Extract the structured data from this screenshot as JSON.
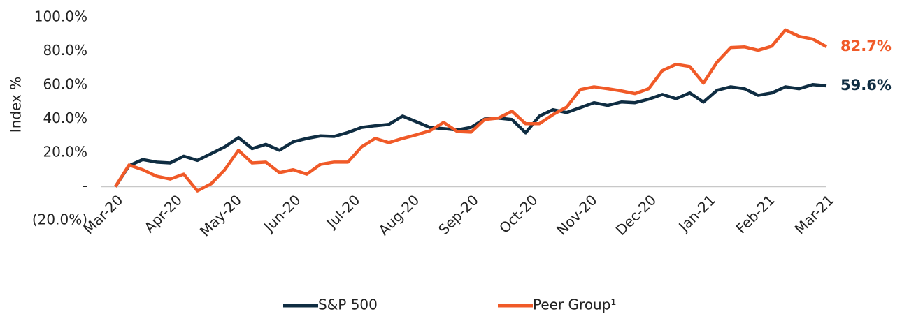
{
  "chart_data": {
    "type": "line",
    "ylabel": "Index %",
    "x": [
      0,
      1,
      2,
      3,
      4,
      5,
      6,
      7,
      8,
      9,
      10,
      11,
      12,
      13,
      14,
      15,
      16,
      17,
      18,
      19,
      20,
      21,
      22,
      23,
      24,
      25,
      26,
      27,
      28,
      29,
      30,
      31,
      32,
      33,
      34,
      35,
      36,
      37,
      38,
      39,
      40,
      41,
      42,
      43,
      44,
      45,
      46,
      47,
      48,
      49,
      50,
      51,
      52
    ],
    "xlim": [
      0,
      52
    ],
    "xticks": [
      {
        "value": 0,
        "label": "Mar-20"
      },
      {
        "value": 4.33,
        "label": "Apr-20"
      },
      {
        "value": 8.67,
        "label": "May-20"
      },
      {
        "value": 13,
        "label": "Jun-20"
      },
      {
        "value": 17.33,
        "label": "Jul-20"
      },
      {
        "value": 21.67,
        "label": "Aug-20"
      },
      {
        "value": 26,
        "label": "Sep-20"
      },
      {
        "value": 30.33,
        "label": "Oct-20"
      },
      {
        "value": 34.67,
        "label": "Nov-20"
      },
      {
        "value": 39,
        "label": "Dec-20"
      },
      {
        "value": 43.33,
        "label": "Jan-21"
      },
      {
        "value": 47.67,
        "label": "Feb-21"
      },
      {
        "value": 52,
        "label": "Mar-21"
      }
    ],
    "ylim": [
      -20,
      100
    ],
    "yticks": [
      {
        "value": -20,
        "label": "(20.0%)"
      },
      {
        "value": 0,
        "label": "-"
      },
      {
        "value": 20,
        "label": "20.0%"
      },
      {
        "value": 40,
        "label": "40.0%"
      },
      {
        "value": 60,
        "label": "60.0%"
      },
      {
        "value": 80,
        "label": "80.0%"
      },
      {
        "value": 100,
        "label": "100.0%"
      }
    ],
    "zero_line": true,
    "series": [
      {
        "name": "S&P 500",
        "color": "#0f2d42",
        "values": [
          0,
          12.4,
          16,
          14.5,
          14,
          18,
          15.5,
          19.5,
          23.5,
          29,
          22.5,
          25,
          21.5,
          26.5,
          28.5,
          30,
          29.7,
          32,
          35,
          36,
          36.8,
          41.7,
          38.4,
          35,
          34.3,
          33.5,
          35,
          40,
          40.5,
          39.7,
          31.8,
          41.7,
          45.5,
          43.8,
          46.7,
          49.6,
          48,
          50,
          49.6,
          51.7,
          54.5,
          52,
          55.4,
          50,
          57,
          59,
          57.9,
          54,
          55.4,
          59,
          57.9,
          60.3,
          59.6
        ],
        "value_labels": [
          null,
          null,
          null,
          null,
          null,
          null,
          null,
          null,
          null,
          null,
          null,
          null,
          null,
          null,
          null,
          null,
          null,
          null,
          null,
          null,
          null,
          null,
          null,
          null,
          null,
          null,
          null,
          null,
          null,
          null,
          null,
          null,
          null,
          null,
          null,
          null,
          null,
          null,
          null,
          null,
          null,
          null,
          null,
          null,
          null,
          null,
          null,
          null,
          null,
          null,
          null,
          null,
          "59.6%"
        ]
      },
      {
        "name": "Peer Group¹",
        "color": "#f05a28",
        "values": [
          0,
          12.8,
          10,
          6.2,
          4.5,
          7.4,
          -2.5,
          1.7,
          10,
          21.5,
          14,
          14.5,
          8.3,
          10,
          7.4,
          13.2,
          14.5,
          14.5,
          23.5,
          28.5,
          26,
          28.5,
          30.6,
          33,
          38,
          32.6,
          32.2,
          39.7,
          40.5,
          44.6,
          37.2,
          37.2,
          42.6,
          47,
          57.4,
          59,
          57.9,
          56.6,
          55,
          57.9,
          68.6,
          72.3,
          71,
          61.2,
          73.6,
          82.2,
          82.6,
          80.6,
          83,
          92.6,
          88.8,
          87.2,
          82.7
        ],
        "value_labels": [
          null,
          null,
          null,
          null,
          null,
          null,
          null,
          null,
          null,
          null,
          null,
          null,
          null,
          null,
          null,
          null,
          null,
          null,
          null,
          null,
          null,
          null,
          null,
          null,
          null,
          null,
          null,
          null,
          null,
          null,
          null,
          null,
          null,
          null,
          null,
          null,
          null,
          null,
          null,
          null,
          null,
          null,
          null,
          null,
          null,
          null,
          null,
          null,
          null,
          null,
          null,
          null,
          "82.7%"
        ]
      }
    ],
    "legend": "bottom"
  }
}
